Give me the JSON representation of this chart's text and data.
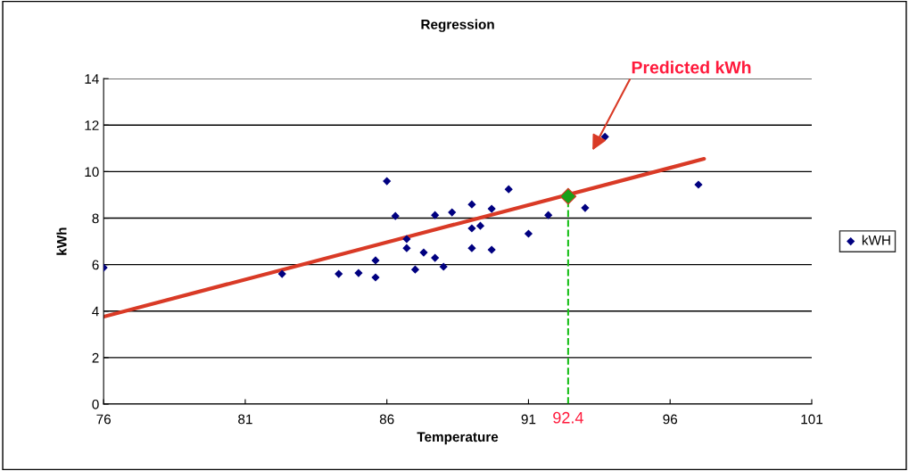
{
  "chart_data": {
    "type": "scatter",
    "title": "Regression",
    "xlabel": "Temperature",
    "ylabel": "kWh",
    "xlim": [
      76,
      101
    ],
    "xticks": [
      76,
      81,
      86,
      91,
      96,
      101
    ],
    "ylim": [
      0,
      14
    ],
    "yticks": [
      0,
      2,
      4,
      6,
      8,
      10,
      12,
      14
    ],
    "grid": "y",
    "legend": "right",
    "marker": "diamond",
    "series": [
      {
        "name": "kWH",
        "color": "#000080",
        "x": [
          76,
          82.3,
          84.3,
          85.0,
          85.6,
          85.6,
          86.0,
          86.3,
          86.7,
          86.7,
          87.0,
          87.3,
          87.7,
          87.7,
          88.0,
          88.3,
          89.0,
          89.0,
          89.0,
          89.3,
          89.7,
          89.7,
          90.3,
          91.0,
          91.7,
          93.0,
          93.7,
          97.0
        ],
        "values": [
          5.87,
          5.6,
          5.6,
          5.64,
          6.18,
          5.45,
          9.59,
          8.09,
          7.1,
          6.71,
          5.79,
          6.52,
          6.29,
          8.13,
          5.91,
          8.25,
          8.59,
          7.56,
          6.71,
          7.67,
          8.4,
          6.64,
          9.24,
          7.33,
          8.13,
          8.44,
          11.5,
          9.44
        ]
      },
      {
        "type": "line",
        "marker": "none",
        "color": "#d93a26",
        "x": [
          76,
          97.2
        ],
        "values": [
          3.76,
          10.55
        ]
      },
      {
        "color": "#19a019",
        "x": [
          92.4
        ],
        "values": [
          8.94
        ]
      }
    ],
    "ref_lines": [
      {
        "axis": "x",
        "value": 92.4,
        "label": "92.4",
        "color": "#19c019",
        "line_style": "dashed"
      }
    ],
    "annotations": [
      "Predicted kWh"
    ]
  }
}
